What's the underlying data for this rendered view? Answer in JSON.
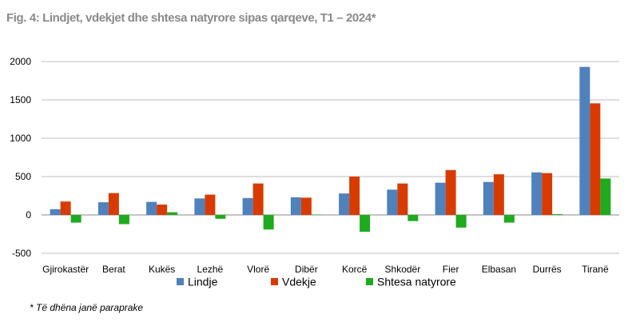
{
  "title": "Fig. 4:  Lindjet, vdekjet dhe shtesa natyrore sipas qarqeve, T1 – 2024*",
  "footnote": "* Të dhëna janë paraprake",
  "chart_data": {
    "type": "bar",
    "title": "Fig. 4:  Lindjet, vdekjet dhe shtesa natyrore sipas qarqeve, T1 – 2024*",
    "xlabel": "",
    "ylabel": "",
    "ylim": [
      -500,
      2000
    ],
    "yticks": [
      -500,
      0,
      500,
      1000,
      1500,
      2000
    ],
    "ytick_labels": [
      "-500",
      "0",
      "500",
      "1000",
      "1500",
      "2000"
    ],
    "grid": true,
    "legend_position": "bottom",
    "categories": [
      "Gjirokastër",
      "Berat",
      "Kukës",
      "Lezhë",
      "Vlorë",
      "Dibër",
      "Korcë",
      "Shkodër",
      "Fier",
      "Elbasan",
      "Durrës",
      "Tiranë"
    ],
    "series": [
      {
        "name": "Lindje",
        "color": "#4f81bd",
        "values": [
          75,
          165,
          170,
          215,
          220,
          230,
          280,
          330,
          420,
          430,
          555,
          1930
        ]
      },
      {
        "name": "Vdekje",
        "color": "#d83b01",
        "values": [
          175,
          285,
          135,
          265,
          410,
          225,
          500,
          410,
          585,
          530,
          545,
          1455
        ]
      },
      {
        "name": "Shtesa natyrore",
        "color": "#1faa1f",
        "values": [
          -100,
          -120,
          35,
          -50,
          -190,
          5,
          -220,
          -80,
          -165,
          -100,
          10,
          475
        ]
      }
    ]
  }
}
